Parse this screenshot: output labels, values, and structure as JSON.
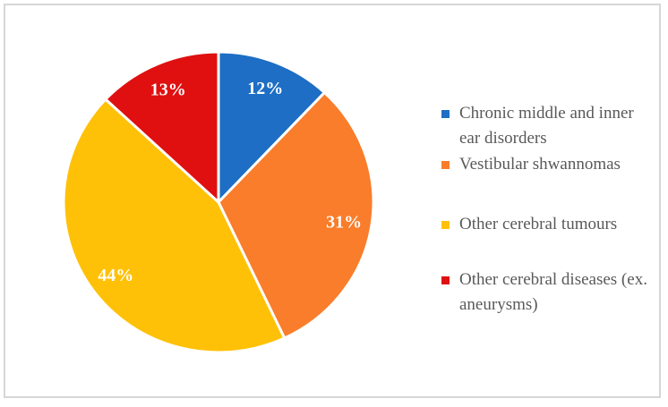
{
  "figure": {
    "background": "#ffffff",
    "frame_border_color": "#d6d6d6"
  },
  "chart_data": {
    "type": "pie",
    "title": "",
    "start_angle_deg": 0,
    "direction": "clockwise",
    "legend_position": "right",
    "slice_label_color": "#ffffff",
    "legend_text_color": "#595959",
    "categories": [
      "Chronic middle and inner ear disorders",
      "Vestibular shwannomas",
      "Other cerebral tumours",
      "Other cerebral diseases (ex. aneurysms)"
    ],
    "values": [
      12,
      31,
      44,
      13
    ],
    "slices": [
      {
        "label": "Chronic middle and inner ear disorders",
        "value_pct": 12,
        "display": "12%",
        "color": "#1d6ec4"
      },
      {
        "label": "Vestibular shwannomas",
        "value_pct": 31,
        "display": "31%",
        "color": "#f97d2b"
      },
      {
        "label": "Other cerebral tumours",
        "value_pct": 44,
        "display": "44%",
        "color": "#ffc107"
      },
      {
        "label": "Other cerebral diseases (ex. aneurysms)",
        "value_pct": 13,
        "display": "13%",
        "color": "#e01010"
      }
    ]
  }
}
